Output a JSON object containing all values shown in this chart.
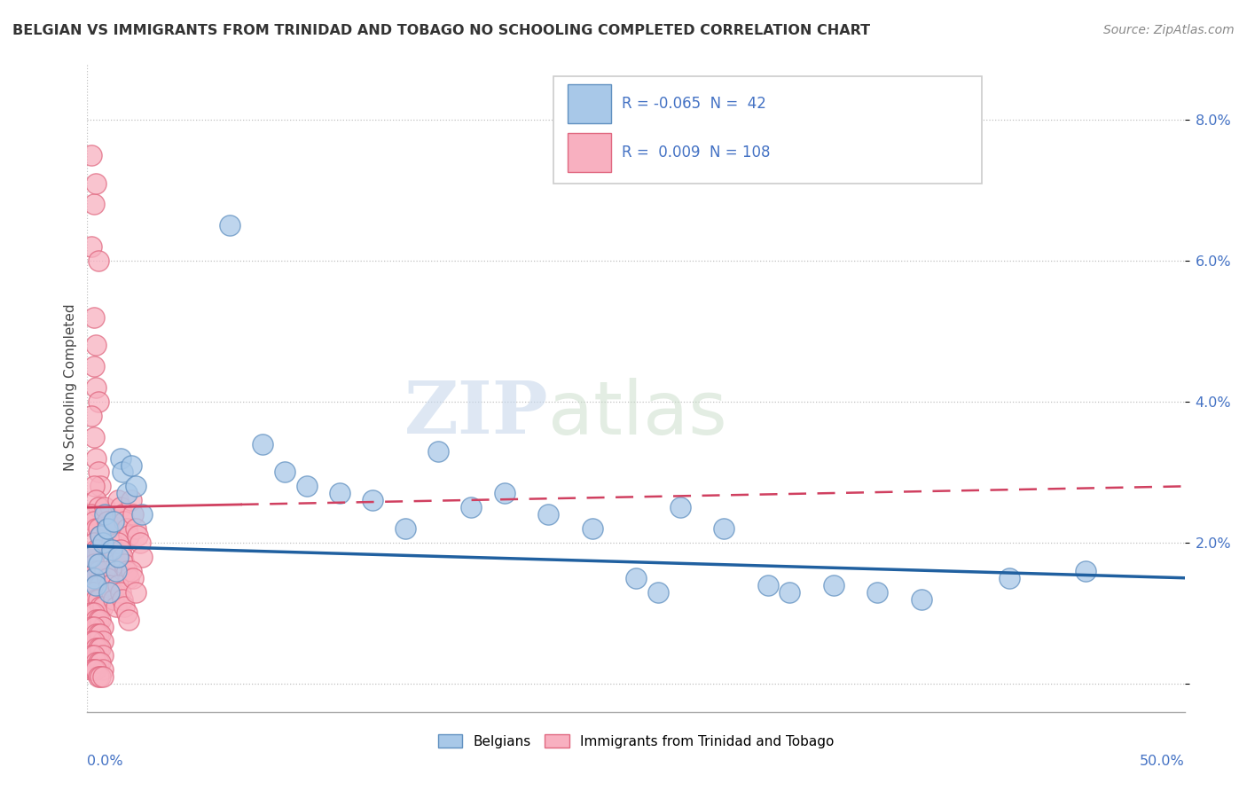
{
  "title": "BELGIAN VS IMMIGRANTS FROM TRINIDAD AND TOBAGO NO SCHOOLING COMPLETED CORRELATION CHART",
  "source": "Source: ZipAtlas.com",
  "ylabel": "No Schooling Completed",
  "x_min": 0.0,
  "x_max": 0.5,
  "y_min": -0.004,
  "y_max": 0.088,
  "y_ticks": [
    0.0,
    0.02,
    0.04,
    0.06,
    0.08
  ],
  "y_tick_labels": [
    "",
    "2.0%",
    "4.0%",
    "6.0%",
    "8.0%"
  ],
  "legend_belgians": "Belgians",
  "legend_immigrants": "Immigrants from Trinidad and Tobago",
  "watermark_zip": "ZIP",
  "watermark_atlas": "atlas",
  "blue_scatter_color": "#a8c8e8",
  "blue_edge_color": "#6090c0",
  "pink_scatter_color": "#f8b0c0",
  "pink_edge_color": "#e06880",
  "blue_line_color": "#2060a0",
  "pink_line_color": "#d04060",
  "blue_intercept": 0.0195,
  "blue_slope": -0.009,
  "pink_intercept": 0.025,
  "pink_slope": 0.006,
  "blue_points": [
    [
      0.002,
      0.018
    ],
    [
      0.003,
      0.015
    ],
    [
      0.004,
      0.014
    ],
    [
      0.005,
      0.017
    ],
    [
      0.006,
      0.021
    ],
    [
      0.007,
      0.02
    ],
    [
      0.008,
      0.024
    ],
    [
      0.009,
      0.022
    ],
    [
      0.01,
      0.013
    ],
    [
      0.011,
      0.019
    ],
    [
      0.012,
      0.023
    ],
    [
      0.013,
      0.016
    ],
    [
      0.014,
      0.018
    ],
    [
      0.015,
      0.032
    ],
    [
      0.016,
      0.03
    ],
    [
      0.018,
      0.027
    ],
    [
      0.065,
      0.065
    ],
    [
      0.02,
      0.031
    ],
    [
      0.022,
      0.028
    ],
    [
      0.025,
      0.024
    ],
    [
      0.08,
      0.034
    ],
    [
      0.09,
      0.03
    ],
    [
      0.1,
      0.028
    ],
    [
      0.115,
      0.027
    ],
    [
      0.13,
      0.026
    ],
    [
      0.145,
      0.022
    ],
    [
      0.16,
      0.033
    ],
    [
      0.175,
      0.025
    ],
    [
      0.19,
      0.027
    ],
    [
      0.21,
      0.024
    ],
    [
      0.23,
      0.022
    ],
    [
      0.25,
      0.015
    ],
    [
      0.26,
      0.013
    ],
    [
      0.27,
      0.025
    ],
    [
      0.29,
      0.022
    ],
    [
      0.31,
      0.014
    ],
    [
      0.32,
      0.013
    ],
    [
      0.34,
      0.014
    ],
    [
      0.36,
      0.013
    ],
    [
      0.38,
      0.012
    ],
    [
      0.42,
      0.015
    ],
    [
      0.455,
      0.016
    ]
  ],
  "pink_points": [
    [
      0.002,
      0.075
    ],
    [
      0.003,
      0.068
    ],
    [
      0.002,
      0.062
    ],
    [
      0.004,
      0.071
    ],
    [
      0.005,
      0.06
    ],
    [
      0.003,
      0.052
    ],
    [
      0.004,
      0.048
    ],
    [
      0.003,
      0.045
    ],
    [
      0.004,
      0.042
    ],
    [
      0.005,
      0.04
    ],
    [
      0.002,
      0.038
    ],
    [
      0.003,
      0.035
    ],
    [
      0.004,
      0.032
    ],
    [
      0.005,
      0.03
    ],
    [
      0.006,
      0.028
    ],
    [
      0.003,
      0.028
    ],
    [
      0.004,
      0.026
    ],
    [
      0.005,
      0.025
    ],
    [
      0.002,
      0.024
    ],
    [
      0.003,
      0.023
    ],
    [
      0.004,
      0.022
    ],
    [
      0.005,
      0.022
    ],
    [
      0.006,
      0.021
    ],
    [
      0.003,
      0.02
    ],
    [
      0.004,
      0.019
    ],
    [
      0.005,
      0.019
    ],
    [
      0.002,
      0.018
    ],
    [
      0.003,
      0.017
    ],
    [
      0.004,
      0.016
    ],
    [
      0.005,
      0.016
    ],
    [
      0.006,
      0.015
    ],
    [
      0.003,
      0.015
    ],
    [
      0.004,
      0.014
    ],
    [
      0.005,
      0.014
    ],
    [
      0.006,
      0.014
    ],
    [
      0.002,
      0.013
    ],
    [
      0.003,
      0.013
    ],
    [
      0.004,
      0.012
    ],
    [
      0.005,
      0.012
    ],
    [
      0.006,
      0.011
    ],
    [
      0.007,
      0.011
    ],
    [
      0.002,
      0.01
    ],
    [
      0.003,
      0.01
    ],
    [
      0.004,
      0.009
    ],
    [
      0.005,
      0.009
    ],
    [
      0.006,
      0.009
    ],
    [
      0.007,
      0.008
    ],
    [
      0.002,
      0.008
    ],
    [
      0.003,
      0.008
    ],
    [
      0.004,
      0.007
    ],
    [
      0.005,
      0.007
    ],
    [
      0.006,
      0.007
    ],
    [
      0.007,
      0.006
    ],
    [
      0.002,
      0.006
    ],
    [
      0.003,
      0.006
    ],
    [
      0.004,
      0.005
    ],
    [
      0.005,
      0.005
    ],
    [
      0.006,
      0.005
    ],
    [
      0.007,
      0.004
    ],
    [
      0.002,
      0.004
    ],
    [
      0.003,
      0.004
    ],
    [
      0.004,
      0.003
    ],
    [
      0.005,
      0.003
    ],
    [
      0.006,
      0.003
    ],
    [
      0.007,
      0.002
    ],
    [
      0.002,
      0.002
    ],
    [
      0.003,
      0.002
    ],
    [
      0.004,
      0.002
    ],
    [
      0.005,
      0.001
    ],
    [
      0.006,
      0.001
    ],
    [
      0.007,
      0.001
    ],
    [
      0.008,
      0.025
    ],
    [
      0.009,
      0.023
    ],
    [
      0.01,
      0.022
    ],
    [
      0.011,
      0.02
    ],
    [
      0.012,
      0.019
    ],
    [
      0.013,
      0.017
    ],
    [
      0.008,
      0.016
    ],
    [
      0.009,
      0.015
    ],
    [
      0.01,
      0.014
    ],
    [
      0.011,
      0.013
    ],
    [
      0.012,
      0.012
    ],
    [
      0.013,
      0.011
    ],
    [
      0.014,
      0.026
    ],
    [
      0.015,
      0.025
    ],
    [
      0.016,
      0.024
    ],
    [
      0.017,
      0.023
    ],
    [
      0.018,
      0.022
    ],
    [
      0.019,
      0.021
    ],
    [
      0.014,
      0.02
    ],
    [
      0.015,
      0.019
    ],
    [
      0.016,
      0.018
    ],
    [
      0.017,
      0.017
    ],
    [
      0.018,
      0.016
    ],
    [
      0.019,
      0.015
    ],
    [
      0.014,
      0.014
    ],
    [
      0.015,
      0.013
    ],
    [
      0.016,
      0.012
    ],
    [
      0.017,
      0.011
    ],
    [
      0.018,
      0.01
    ],
    [
      0.019,
      0.009
    ],
    [
      0.02,
      0.026
    ],
    [
      0.021,
      0.024
    ],
    [
      0.022,
      0.022
    ],
    [
      0.023,
      0.021
    ],
    [
      0.024,
      0.02
    ],
    [
      0.025,
      0.018
    ],
    [
      0.02,
      0.016
    ],
    [
      0.021,
      0.015
    ],
    [
      0.022,
      0.013
    ]
  ]
}
